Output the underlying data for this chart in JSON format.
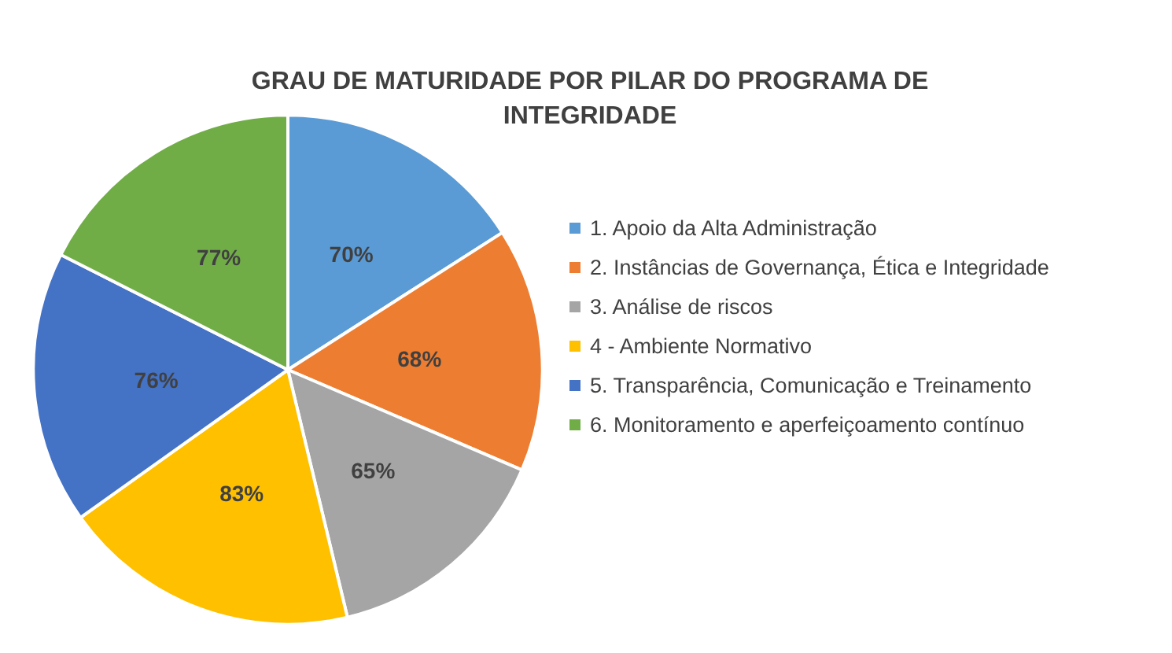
{
  "chart_data": {
    "type": "pie",
    "title": "GRAU DE MATURIDADE POR PILAR DO PROGRAMA DE\nINTEGRIDADE",
    "categories": [
      "1. Apoio da Alta Administração",
      "2. Instâncias de Governança, Ética e Integridade",
      "3. Análise de riscos",
      "4 - Ambiente Normativo",
      "5. Transparência, Comunicação e Treinamento",
      "6. Monitoramento e aperfeiçoamento contínuo"
    ],
    "values": [
      70,
      68,
      65,
      83,
      76,
      77
    ],
    "value_labels": [
      "70%",
      "68%",
      "65%",
      "83%",
      "76%",
      "77%"
    ],
    "colors": [
      "#5b9bd5",
      "#ed7d31",
      "#a5a5a5",
      "#ffc000",
      "#4472c4",
      "#70ad47"
    ],
    "legend": "right"
  }
}
